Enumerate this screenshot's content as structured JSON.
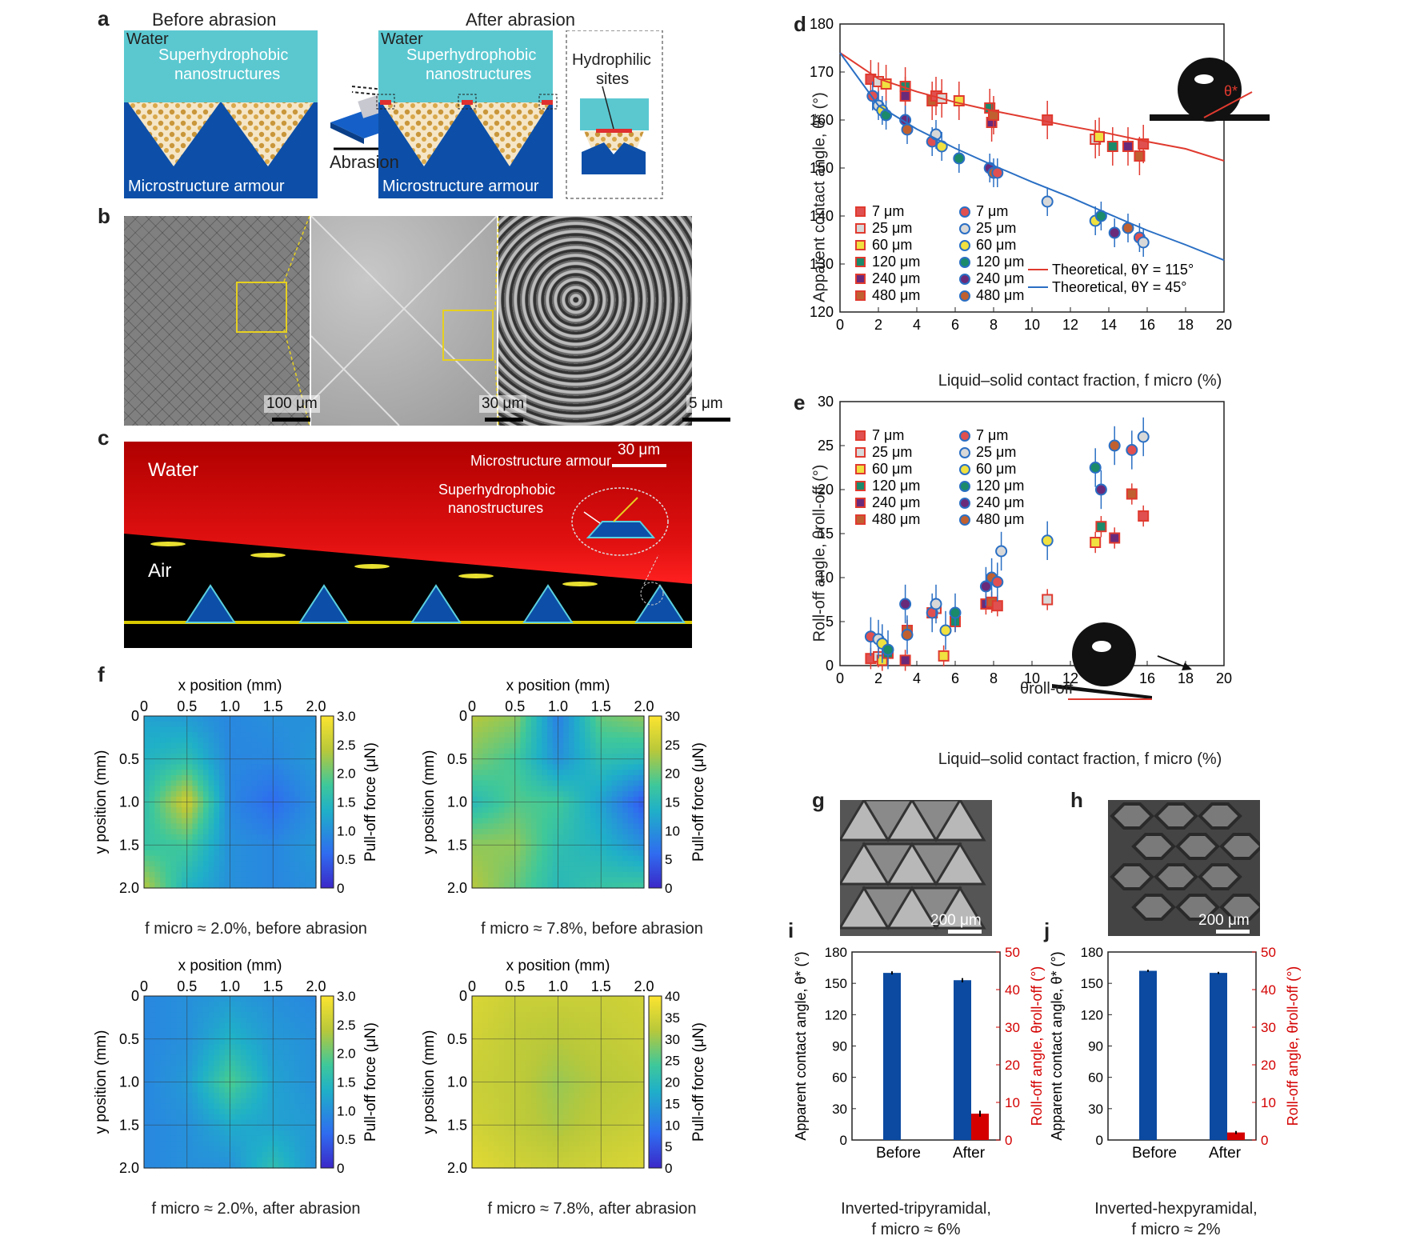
{
  "panel_letters": {
    "a": "a",
    "b": "b",
    "c": "c",
    "d": "d",
    "e": "e",
    "f": "f",
    "g": "g",
    "h": "h",
    "i": "i",
    "j": "j"
  },
  "panel_a": {
    "before_title": "Before abrasion",
    "after_title": "After abrasion",
    "water": "Water",
    "nano_line1": "Superhydrophobic",
    "nano_line2": "nanostructures",
    "micro": "Microstructure armour",
    "abrasion": "Abrasion",
    "hydrophilic_line1": "Hydrophilic",
    "hydrophilic_line2": "sites"
  },
  "panel_b": {
    "scale1": "100 μm",
    "scale2": "30 μm",
    "scale3": "5 μm"
  },
  "panel_c": {
    "water": "Water",
    "air": "Air",
    "scale": "30 μm",
    "armour": "Microstructure armour",
    "nano_line1": "Superhydrophobic",
    "nano_line2": "nanostructures"
  },
  "colors": {
    "red_series": "#e03a2f",
    "blue_series": "#2a6fc4",
    "bar_blue": "#0b4aa0",
    "bar_red": "#d40000",
    "water": "#5bc8d0",
    "armour": "#0d4fa8"
  },
  "chart_data": [
    {
      "id": "d",
      "type": "scatter",
      "xlabel": "Liquid–solid contact fraction, f micro (%)",
      "ylabel": "Apparent contact angle, θ* (°)",
      "xlim": [
        0,
        20
      ],
      "ylim": [
        120,
        180
      ],
      "xticks": [
        0,
        2,
        4,
        6,
        8,
        10,
        12,
        14,
        16,
        18,
        20
      ],
      "yticks": [
        120,
        130,
        140,
        150,
        160,
        170,
        180
      ],
      "legend_left": [
        "7 μm",
        "25 μm",
        "60 μm",
        "120 μm",
        "240 μm",
        "480 μm"
      ],
      "legend_right": [
        "7 μm",
        "25 μm",
        "60 μm",
        "120 μm",
        "240 μm",
        "480 μm"
      ],
      "theory_red": "Theoretical, θY = 115°",
      "theory_blue": "Theoretical, θY = 45°",
      "series": [
        {
          "name": "red",
          "marker": "square",
          "points": [
            [
              1.6,
              168.5
            ],
            [
              2.0,
              168
            ],
            [
              2.4,
              167.5
            ],
            [
              3.4,
              167
            ],
            [
              3.4,
              165
            ],
            [
              4.8,
              164
            ],
            [
              5.0,
              165
            ],
            [
              5.3,
              164.5
            ],
            [
              6.2,
              164
            ],
            [
              7.8,
              162.5
            ],
            [
              7.9,
              159.5
            ],
            [
              8.0,
              161
            ],
            [
              10.8,
              160
            ],
            [
              13.3,
              156
            ],
            [
              13.5,
              156.5
            ],
            [
              14.2,
              154.5
            ],
            [
              15.0,
              154.5
            ],
            [
              15.6,
              152.5
            ],
            [
              15.8,
              155
            ]
          ],
          "err": 4
        },
        {
          "name": "blue",
          "marker": "circle",
          "points": [
            [
              1.7,
              165
            ],
            [
              2.0,
              163
            ],
            [
              2.2,
              162
            ],
            [
              2.4,
              161
            ],
            [
              3.4,
              160
            ],
            [
              3.5,
              158
            ],
            [
              4.8,
              155.5
            ],
            [
              5.0,
              157
            ],
            [
              5.3,
              154.5
            ],
            [
              6.2,
              152
            ],
            [
              7.8,
              150
            ],
            [
              8.0,
              149
            ],
            [
              8.2,
              149
            ],
            [
              10.8,
              143
            ],
            [
              13.3,
              139
            ],
            [
              13.6,
              140
            ],
            [
              14.3,
              136.5
            ],
            [
              15.0,
              137.5
            ],
            [
              15.6,
              135.5
            ],
            [
              15.8,
              134.5
            ]
          ],
          "err": 3
        },
        {
          "name": "Theoretical, θY = 115°",
          "type": "line",
          "x": [
            0,
            2,
            4,
            6,
            8,
            10,
            12,
            14,
            16,
            18,
            20
          ],
          "y": [
            174,
            168.6,
            165.9,
            163.7,
            161.9,
            160.3,
            158.7,
            157.2,
            155.5,
            154,
            151.5
          ]
        },
        {
          "name": "Theoretical, θY = 45°",
          "type": "line",
          "x": [
            0,
            2,
            4,
            6,
            8,
            10,
            12,
            14,
            16,
            18,
            20
          ],
          "y": [
            174,
            163,
            158.1,
            154.1,
            150.5,
            147.1,
            143.9,
            140.4,
            137,
            134,
            130.8
          ]
        }
      ]
    },
    {
      "id": "e",
      "type": "scatter",
      "xlabel": "Liquid–solid contact fraction, f micro (%)",
      "ylabel": "Roll-off angle, θroll-off (°)",
      "xlim": [
        0,
        20
      ],
      "ylim": [
        0,
        30
      ],
      "xticks": [
        0,
        2,
        4,
        6,
        8,
        10,
        12,
        14,
        16,
        18,
        20
      ],
      "yticks": [
        0,
        5,
        10,
        15,
        20,
        25,
        30
      ],
      "legend_left": [
        "7 μm",
        "25 μm",
        "60 μm",
        "120 μm",
        "240 μm",
        "480 μm"
      ],
      "legend_right": [
        "7 μm",
        "25 μm",
        "60 μm",
        "120 μm",
        "240 μm",
        "480 μm"
      ],
      "inset_label": "θroll-off",
      "series": [
        {
          "name": "red",
          "points": [
            [
              1.6,
              0.8
            ],
            [
              2.0,
              1.0
            ],
            [
              2.2,
              0.6
            ],
            [
              2.5,
              1.4
            ],
            [
              3.4,
              0.6
            ],
            [
              3.5,
              4.0
            ],
            [
              4.8,
              6.0
            ],
            [
              5.0,
              6.5
            ],
            [
              5.4,
              1.1
            ],
            [
              6.0,
              5.0
            ],
            [
              7.6,
              7.0
            ],
            [
              7.9,
              7.2
            ],
            [
              8.2,
              6.8
            ],
            [
              10.8,
              7.5
            ],
            [
              13.3,
              14.0
            ],
            [
              13.6,
              15.8
            ],
            [
              14.3,
              14.5
            ],
            [
              15.2,
              19.5
            ],
            [
              15.8,
              17.0
            ]
          ],
          "err": 1.2
        },
        {
          "name": "blue",
          "points": [
            [
              1.6,
              3.3
            ],
            [
              2.0,
              3.0
            ],
            [
              2.2,
              2.5
            ],
            [
              2.5,
              1.8
            ],
            [
              3.4,
              7.0
            ],
            [
              3.5,
              3.5
            ],
            [
              4.8,
              6.0
            ],
            [
              5.0,
              7.0
            ],
            [
              5.5,
              4.0
            ],
            [
              6.0,
              6.0
            ],
            [
              7.6,
              9.0
            ],
            [
              7.9,
              10.0
            ],
            [
              8.2,
              9.5
            ],
            [
              8.4,
              13.0
            ],
            [
              10.8,
              14.2
            ],
            [
              13.3,
              22.5
            ],
            [
              13.6,
              20.0
            ],
            [
              14.3,
              25.0
            ],
            [
              15.2,
              24.5
            ],
            [
              15.8,
              26.0
            ]
          ],
          "err": 2.2
        }
      ]
    },
    {
      "id": "f1",
      "type": "heatmap",
      "title": "f micro ≈ 2.0%, before abrasion",
      "xlabel": "x position (mm)",
      "ylabel": "y position (mm)",
      "cbar_label": "Pull-off force (μN)",
      "ticks": [
        "0",
        "0.5",
        "1.0",
        "1.5",
        "2.0"
      ],
      "cbar_ticks": [
        "0",
        "0.5",
        "1.0",
        "1.5",
        "2.0",
        "2.5",
        "3.0"
      ],
      "vmax": 3,
      "grid": [
        [
          1.2,
          1.1,
          0.9,
          1.0,
          1.0
        ],
        [
          1.4,
          1.6,
          0.9,
          0.9,
          1.1
        ],
        [
          1.6,
          2.6,
          0.9,
          0.6,
          1.0
        ],
        [
          1.7,
          1.8,
          1.0,
          0.9,
          1.1
        ],
        [
          2.4,
          1.4,
          1.0,
          0.9,
          1.0
        ]
      ]
    },
    {
      "id": "f2",
      "type": "heatmap",
      "title": "f micro ≈ 7.8%, before abrasion",
      "xlabel": "x position (mm)",
      "ylabel": "y position (mm)",
      "cbar_label": "Pull-off force (μN)",
      "ticks": [
        "0",
        "0.5",
        "1.0",
        "1.5",
        "2.0"
      ],
      "cbar_ticks": [
        "0",
        "5",
        "10",
        "15",
        "20",
        "25",
        "30"
      ],
      "vmax": 30,
      "grid": [
        [
          24,
          22,
          8,
          20,
          22
        ],
        [
          21,
          18,
          10,
          16,
          15
        ],
        [
          15,
          19,
          18,
          12,
          4
        ],
        [
          22,
          22,
          16,
          14,
          10
        ],
        [
          24,
          20,
          15,
          17,
          18
        ]
      ]
    },
    {
      "id": "f3",
      "type": "heatmap",
      "title": "f micro ≈ 2.0%, after abrasion",
      "xlabel": "x position (mm)",
      "ylabel": "y position (mm)",
      "cbar_label": "Pull-off force (μN)",
      "ticks": [
        "0",
        "0.5",
        "1.0",
        "1.5",
        "2.0"
      ],
      "cbar_ticks": [
        "0",
        "0.5",
        "1.0",
        "1.5",
        "2.0",
        "2.5",
        "3.0"
      ],
      "vmax": 3,
      "grid": [
        [
          0.9,
          1.0,
          1.1,
          1.0,
          0.9
        ],
        [
          0.9,
          1.0,
          1.4,
          1.1,
          1.0
        ],
        [
          0.9,
          1.1,
          1.9,
          1.2,
          1.0
        ],
        [
          0.9,
          1.0,
          1.3,
          1.2,
          1.1
        ],
        [
          0.9,
          1.0,
          1.0,
          1.6,
          1.0
        ]
      ]
    },
    {
      "id": "f4",
      "type": "heatmap",
      "title": "f micro ≈ 7.8%, after abrasion",
      "xlabel": "x position (mm)",
      "ylabel": "y position (mm)",
      "cbar_label": "Pull-off force (μN)",
      "ticks": [
        "0",
        "0.5",
        "1.0",
        "1.5",
        "2.0"
      ],
      "cbar_ticks": [
        "0",
        "5",
        "10",
        "15",
        "20",
        "25",
        "30",
        "35",
        "40"
      ],
      "vmax": 40,
      "grid": [
        [
          36,
          34,
          34,
          34,
          35
        ],
        [
          35,
          33,
          32,
          33,
          34
        ],
        [
          34,
          33,
          30,
          32,
          33
        ],
        [
          35,
          33,
          31,
          33,
          34
        ],
        [
          37,
          35,
          34,
          35,
          36
        ]
      ]
    },
    {
      "id": "i",
      "type": "bar",
      "categories": [
        "Before",
        "After"
      ],
      "contact_angle": [
        160,
        153
      ],
      "contact_err": [
        1.5,
        2
      ],
      "rolloff": [
        0,
        7
      ],
      "rolloff_err": [
        0,
        0.8
      ],
      "ylabel_left": "Apparent contact angle, θ* (°)",
      "ylabel_right": "Roll-off angle, θroll-off (°)",
      "yticks_left": [
        0,
        30,
        60,
        90,
        120,
        150,
        180
      ],
      "yticks_right": [
        0,
        10,
        20,
        30,
        40,
        50
      ],
      "caption1": "Inverted-tripyramidal,",
      "caption2": "f micro ≈ 6%",
      "scale": "200 μm"
    },
    {
      "id": "j",
      "type": "bar",
      "categories": [
        "Before",
        "After"
      ],
      "contact_angle": [
        162,
        160
      ],
      "contact_err": [
        1,
        1
      ],
      "rolloff": [
        0,
        2
      ],
      "rolloff_err": [
        0,
        0.4
      ],
      "ylabel_left": "Apparent contact angle, θ* (°)",
      "ylabel_right": "Roll-off angle, θroll-off (°)",
      "yticks_left": [
        0,
        30,
        60,
        90,
        120,
        150,
        180
      ],
      "yticks_right": [
        0,
        10,
        20,
        30,
        40,
        50
      ],
      "caption1": "Inverted-hexpyramidal,",
      "caption2": "f micro ≈ 2%",
      "scale": "200 μm"
    }
  ]
}
